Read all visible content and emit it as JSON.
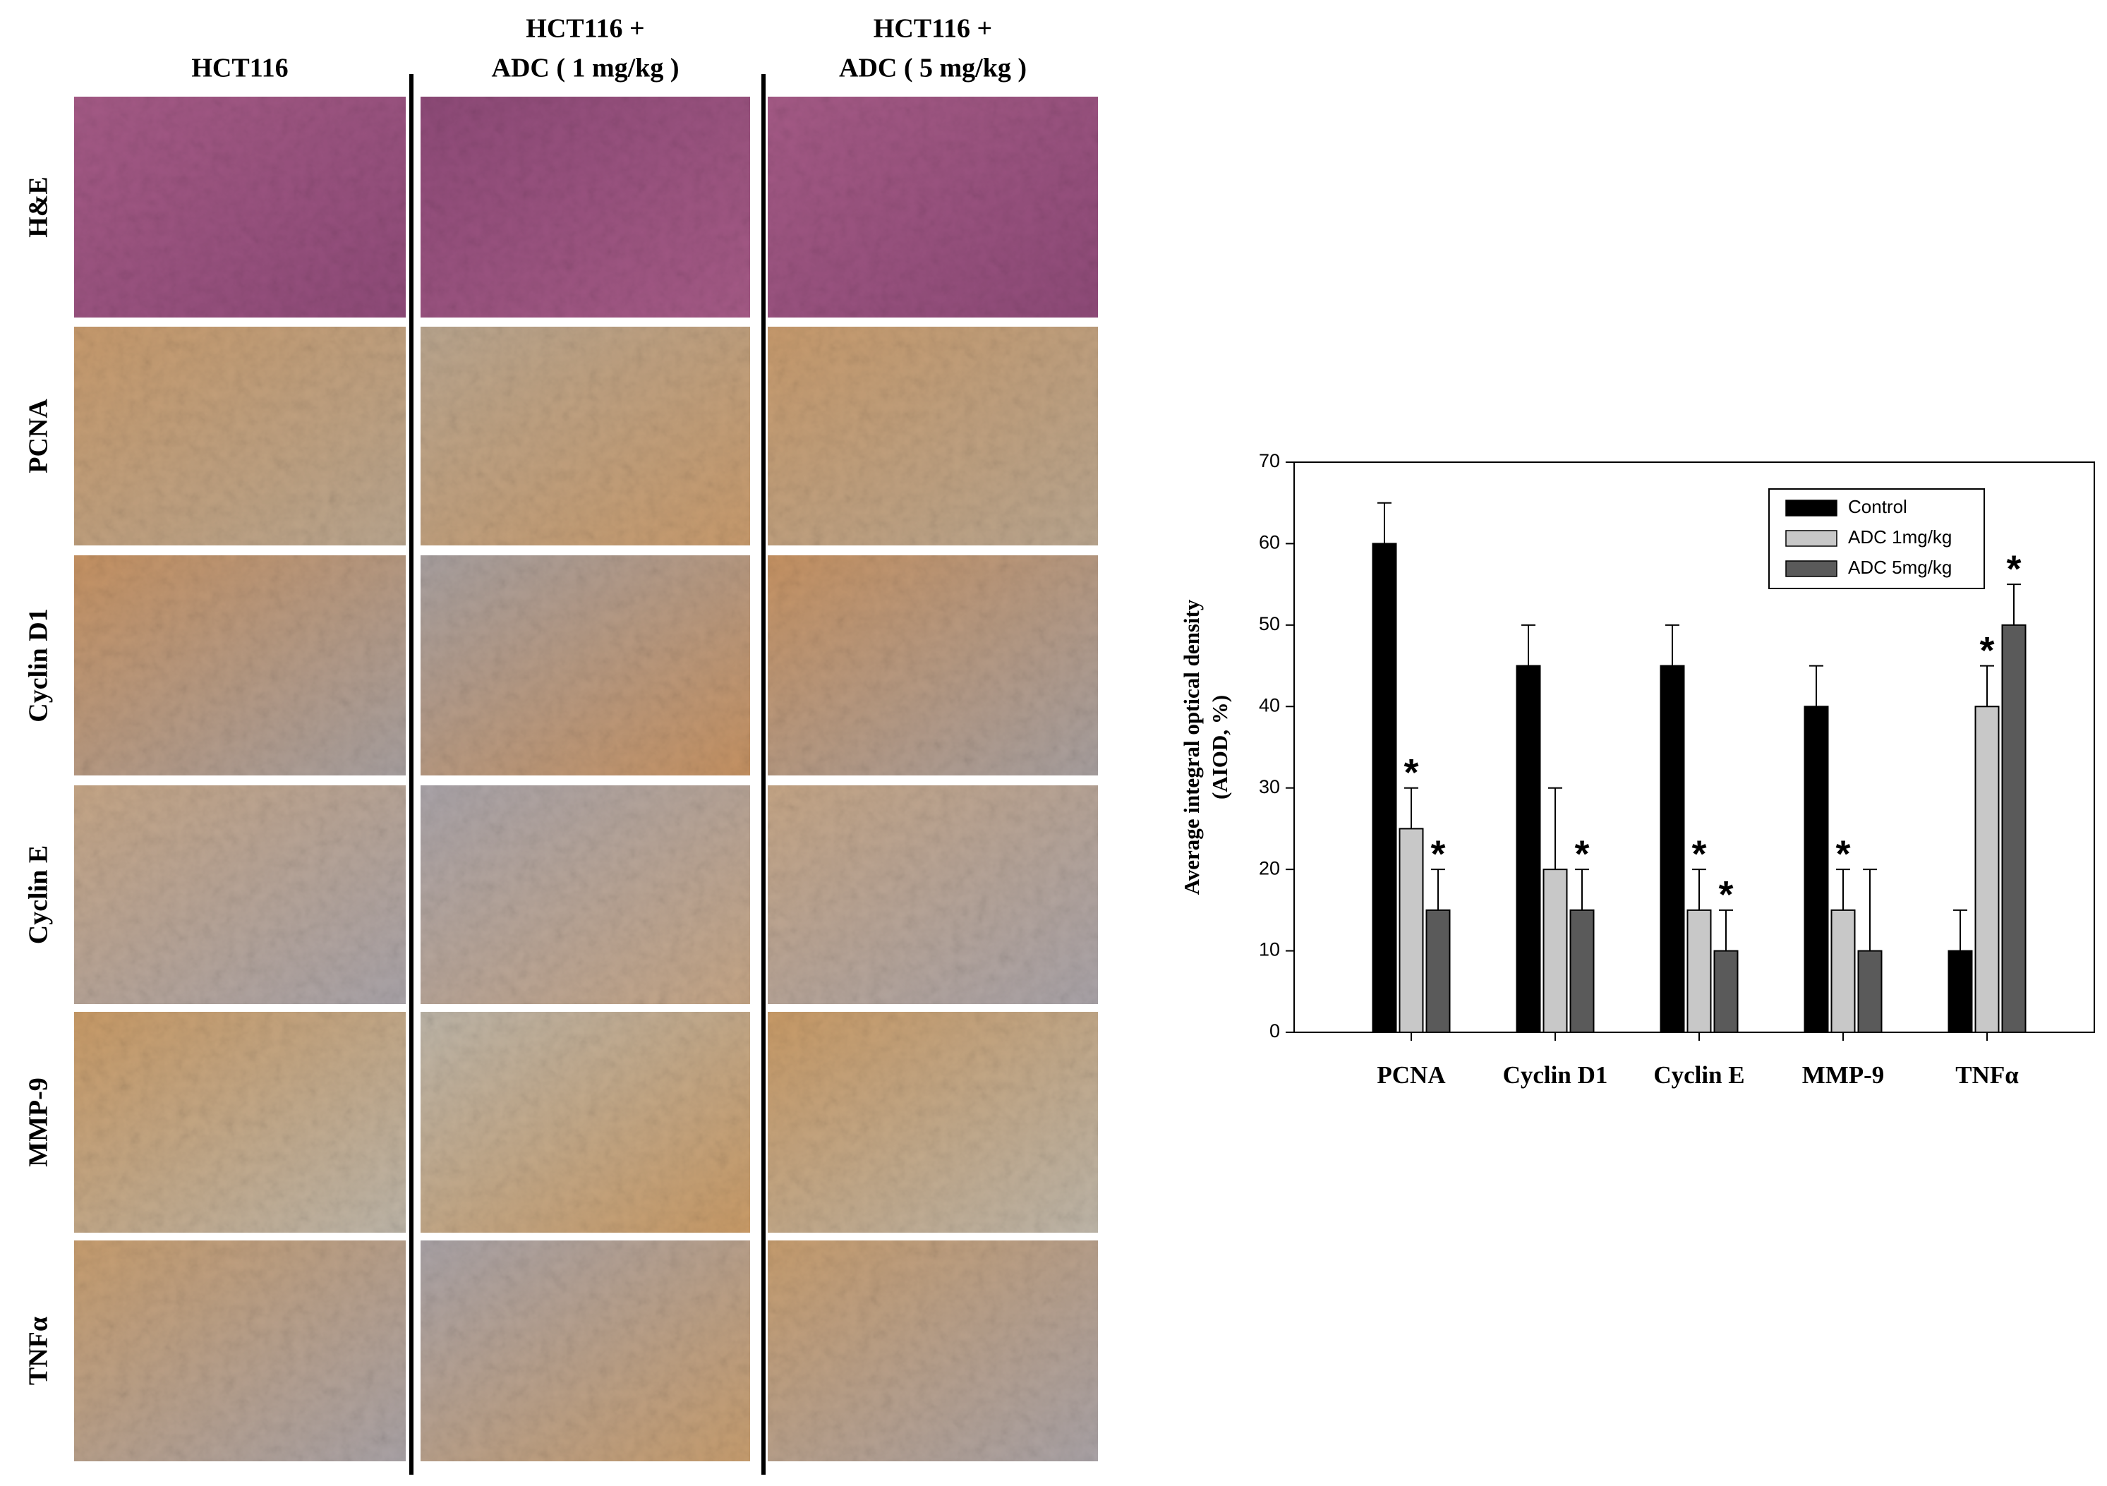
{
  "figure": {
    "columns": [
      [
        "HCT116"
      ],
      [
        "HCT116 +",
        "ADC ( 1 mg/kg )"
      ],
      [
        "HCT116 +",
        "ADC ( 5 mg/kg )"
      ]
    ],
    "rows": [
      "H&E",
      "PCNA",
      "Cyclin D1",
      "Cyclin E",
      "MMP-9",
      "TNFα"
    ]
  },
  "chart_data": {
    "type": "bar",
    "ylabel": [
      "Average integral optical density",
      "(AIOD, %)"
    ],
    "categories": [
      "PCNA",
      "Cyclin D1",
      "Cyclin E",
      "MMP-9",
      "TNFα"
    ],
    "series": [
      {
        "name": "Control",
        "color": "#000000",
        "values": [
          60,
          45,
          45,
          40,
          10
        ],
        "errors": [
          5,
          5,
          5,
          5,
          5
        ]
      },
      {
        "name": "ADC 1mg/kg",
        "color": "#c8c8c8",
        "values": [
          25,
          20,
          15,
          15,
          40
        ],
        "errors": [
          5,
          10,
          5,
          5,
          5
        ],
        "significance": [
          "*",
          null,
          "*",
          "*",
          "*"
        ]
      },
      {
        "name": "ADC 5mg/kg",
        "color": "#5a5a5a",
        "values": [
          15,
          15,
          10,
          10,
          50
        ],
        "errors": [
          5,
          5,
          5,
          10,
          5
        ],
        "significance": [
          "*",
          "*",
          "*",
          null,
          "*"
        ]
      }
    ],
    "ylim": [
      0,
      70
    ],
    "yticks": [
      0,
      10,
      20,
      30,
      40,
      50,
      60,
      70
    ],
    "legend": "upper right",
    "grid": false
  }
}
